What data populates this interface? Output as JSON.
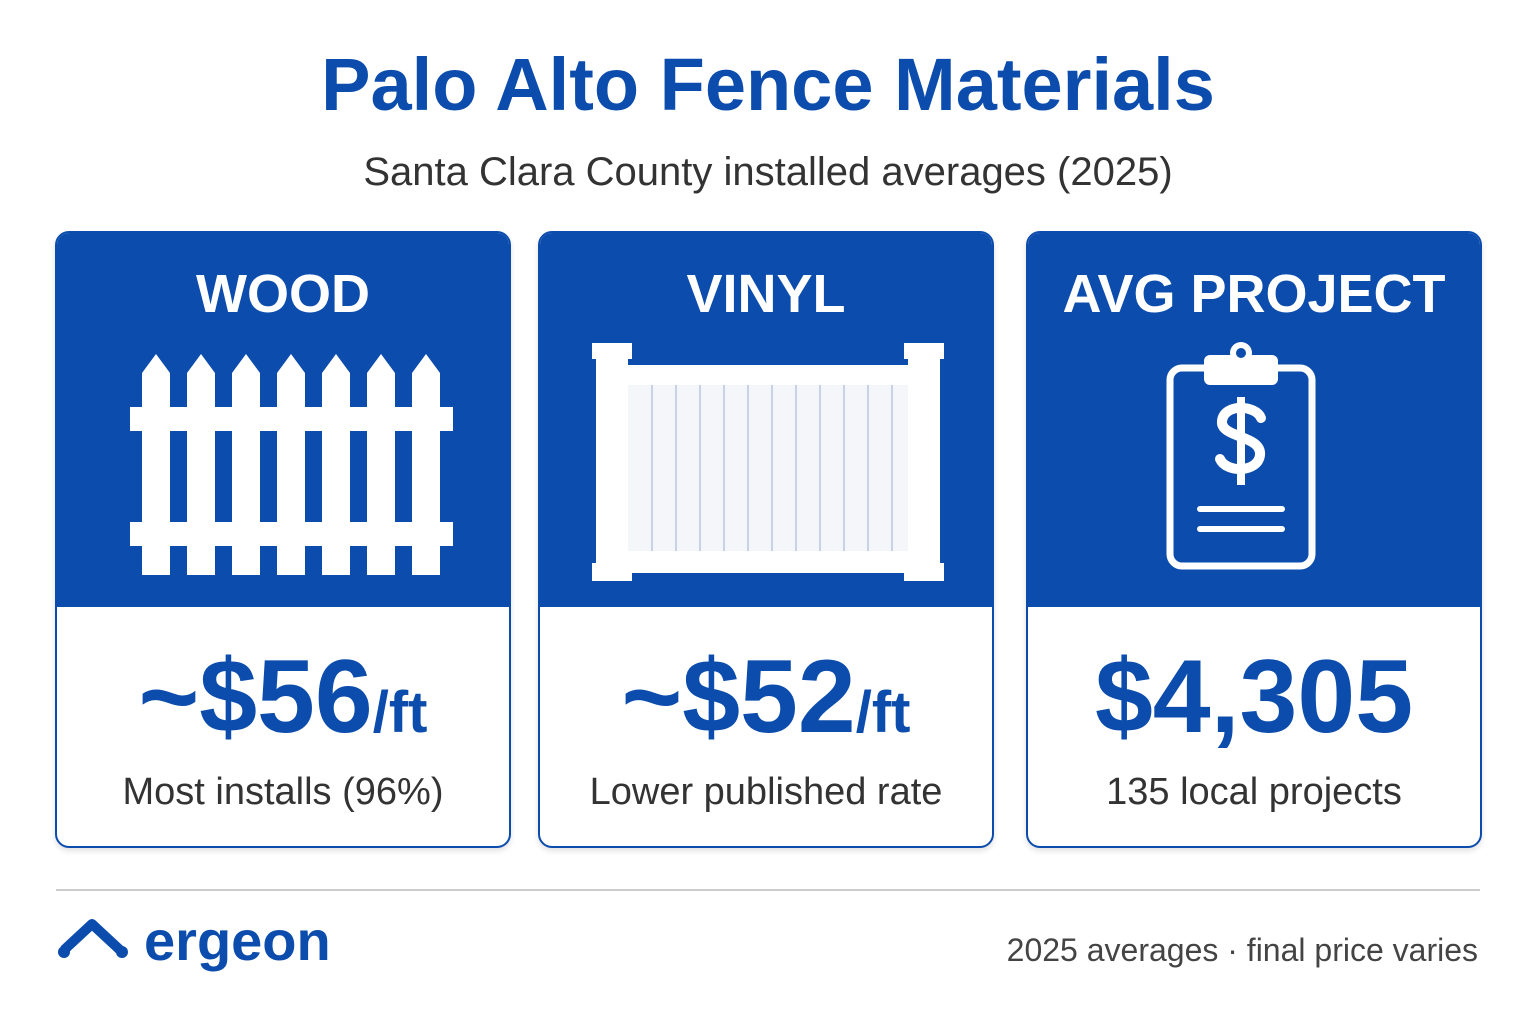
{
  "header": {
    "title": "Palo Alto Fence Materials",
    "subtitle": "Santa Clara County installed averages (2025)"
  },
  "cards": [
    {
      "title": "WOOD",
      "value": "~$56",
      "unit": "/ft",
      "caption": "Most installs (96%)"
    },
    {
      "title": "VINYL",
      "value": "~$52",
      "unit": "/ft",
      "caption": "Lower published rate"
    },
    {
      "title": "AVG PROJECT",
      "value": "$4,305",
      "caption": "135 local projects"
    }
  ],
  "footer": {
    "brand": "ergeon",
    "note": "2025 averages · final price varies"
  }
}
